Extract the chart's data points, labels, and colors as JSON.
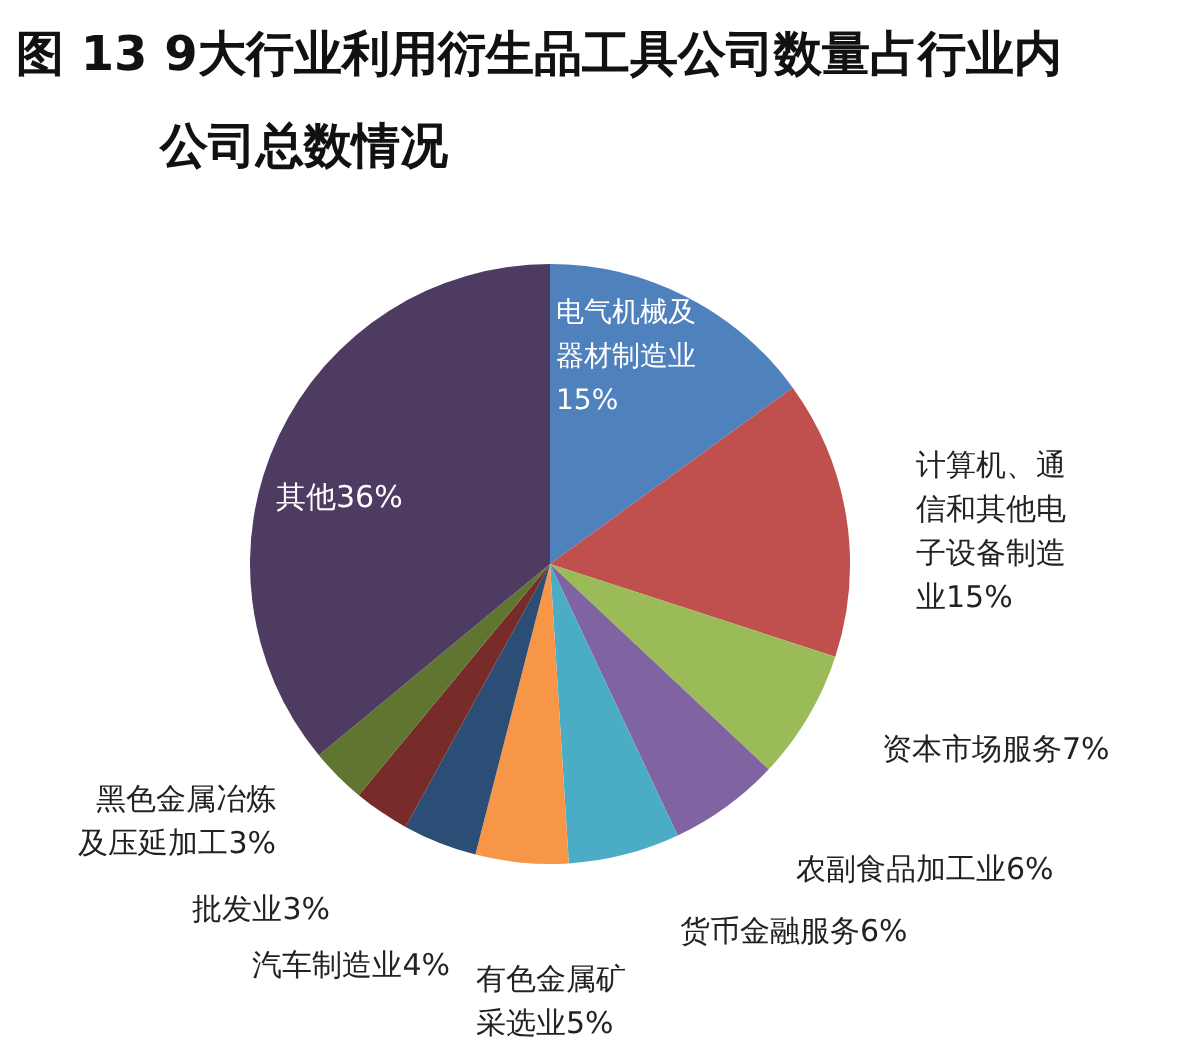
{
  "chart_data": {
    "type": "pie",
    "title": "图 13  9大行业利用衍生品工具公司数量占行业内公司总数情况",
    "categories": [
      "电气机械及器材制造业",
      "计算机、通信和其他电子设备制造业",
      "资本市场服务",
      "农副食品加工业",
      "货币金融服务",
      "有色金属矿采选业",
      "汽车制造业",
      "批发业",
      "黑色金属冶炼及压延加工",
      "其他"
    ],
    "values": [
      15,
      15,
      7,
      6,
      6,
      5,
      4,
      3,
      3,
      36
    ],
    "value_labels": [
      "15%",
      "15%",
      "7%",
      "6%",
      "6%",
      "5%",
      "4%",
      "3%",
      "3%",
      "36%"
    ],
    "colors": [
      "#4f81bd",
      "#c0504d",
      "#9bbb59",
      "#8064a2",
      "#4bacc6",
      "#f79646",
      "#2c4d75",
      "#772c2a",
      "#5f7530",
      "#4d3b62"
    ]
  }
}
